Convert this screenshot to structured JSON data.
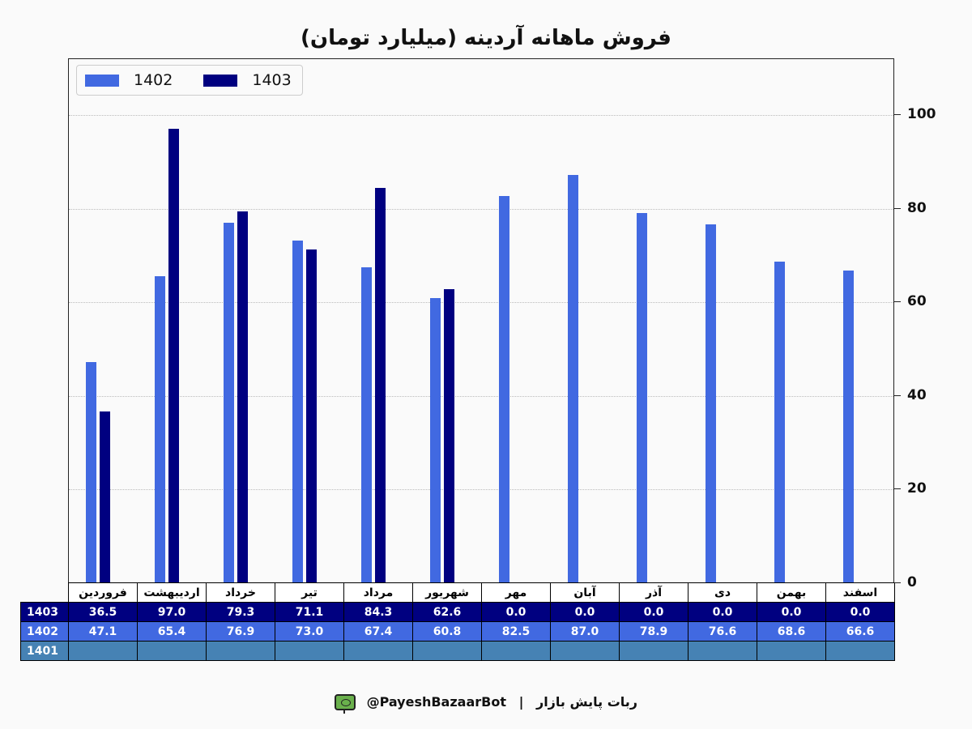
{
  "title": "فروش ماهانه آردینه (میلیارد تومان)",
  "legend": [
    {
      "label": "1402",
      "color": "#4169e1"
    },
    {
      "label": "1403",
      "color": "#000080"
    }
  ],
  "colors": {
    "series_1402": "#4169e1",
    "series_1403": "#000080",
    "series_1401": "#4682b4"
  },
  "y_ticks": [
    "0",
    "20",
    "40",
    "60",
    "80",
    "100"
  ],
  "table": {
    "months": [
      "فروردین",
      "اردیبهشت",
      "خرداد",
      "تیر",
      "مرداد",
      "شهریور",
      "مهر",
      "آبان",
      "آذر",
      "دی",
      "بهمن",
      "اسفند"
    ],
    "rows": [
      {
        "label": "1403",
        "values": [
          "36.5",
          "97.0",
          "79.3",
          "71.1",
          "84.3",
          "62.6",
          "0.0",
          "0.0",
          "0.0",
          "0.0",
          "0.0",
          "0.0"
        ]
      },
      {
        "label": "1402",
        "values": [
          "47.1",
          "65.4",
          "76.9",
          "73.0",
          "67.4",
          "60.8",
          "82.5",
          "87.0",
          "78.9",
          "76.6",
          "68.6",
          "66.6"
        ]
      },
      {
        "label": "1401",
        "values": [
          "",
          "",
          "",
          "",
          "",
          "",
          "",
          "",
          "",
          "",
          "",
          ""
        ]
      }
    ]
  },
  "footer": {
    "bot_name": "ربات پایش بازار",
    "separator": "|",
    "handle": "@PayeshBazaarBot"
  },
  "chart_data": {
    "type": "bar",
    "title": "فروش ماهانه آردینه (میلیارد تومان)",
    "xlabel": "",
    "ylabel": "",
    "ylim": [
      0,
      112
    ],
    "y_axis_position": "right",
    "grid": true,
    "legend_position": "upper left",
    "categories": [
      "فروردین",
      "اردیبهشت",
      "خرداد",
      "تیر",
      "مرداد",
      "شهریور",
      "مهر",
      "آبان",
      "آذر",
      "دی",
      "بهمن",
      "اسفند"
    ],
    "series": [
      {
        "name": "1402",
        "color": "#4169e1",
        "values": [
          47.1,
          65.4,
          76.9,
          73.0,
          67.4,
          60.8,
          82.5,
          87.0,
          78.9,
          76.6,
          68.6,
          66.6
        ]
      },
      {
        "name": "1403",
        "color": "#000080",
        "values": [
          36.5,
          97.0,
          79.3,
          71.1,
          84.3,
          62.6,
          0.0,
          0.0,
          0.0,
          0.0,
          0.0,
          0.0
        ]
      },
      {
        "name": "1401",
        "color": "#4682b4",
        "values": [
          null,
          null,
          null,
          null,
          null,
          null,
          null,
          null,
          null,
          null,
          null,
          null
        ]
      }
    ]
  }
}
